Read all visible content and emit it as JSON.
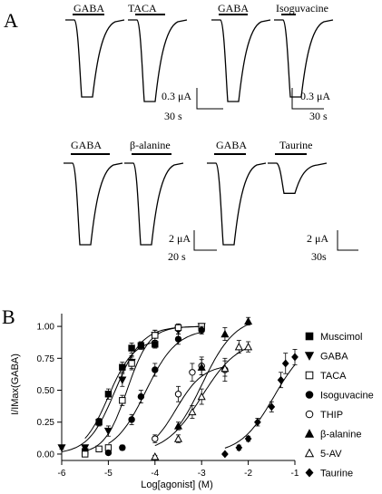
{
  "panelA": {
    "label": "A",
    "pairs": [
      {
        "left": "GABA",
        "right": "TACA",
        "scale_current": "0.3 μA",
        "scale_time": "30 s",
        "left_peak_uA": 0.85,
        "right_peak_uA": 0.9
      },
      {
        "left": "GABA",
        "right": "Isoguvacine",
        "scale_current": "0.3 μA",
        "scale_time": "30 s",
        "left_peak_uA": 0.9,
        "right_peak_uA": 0.85
      },
      {
        "left": "GABA",
        "right": "β-alanine",
        "scale_current": "2 μA",
        "scale_time": "20 s",
        "left_peak_uA": 5.4,
        "right_peak_uA": 5.4
      },
      {
        "left": "GABA",
        "right": "Taurine",
        "scale_current": "2 μA",
        "scale_time": "30s",
        "left_peak_uA": 5.4,
        "right_peak_uA": 2.0
      }
    ]
  },
  "panelB": {
    "label": "B",
    "chart_data": {
      "type": "scatter",
      "xlabel": "Log[agonist] (M)",
      "ylabel": "I/IMax(GABA)",
      "xlim": [
        -6,
        -1
      ],
      "ylim": [
        -0.05,
        1.1
      ],
      "xticks": [
        "-6",
        "-5",
        "-4",
        "-3",
        "-2",
        "-1"
      ],
      "yticks": [
        "0.00",
        "0.25",
        "0.50",
        "0.75",
        "1.00"
      ],
      "legend_position": "right",
      "series": [
        {
          "name": "Muscimol",
          "marker": "square-filled",
          "points": [
            [
              -5.5,
              0.02
            ],
            [
              -5.2,
              0.25
            ],
            [
              -5.0,
              0.47
            ],
            [
              -4.7,
              0.68
            ],
            [
              -4.5,
              0.83
            ],
            [
              -4.3,
              0.85
            ],
            [
              -4.0,
              0.86
            ]
          ],
          "err": [
            0.02,
            0.03,
            0.04,
            0.04,
            0.04,
            0.03,
            0.03
          ],
          "fit": {
            "ec50": -5.0,
            "hill": 1.6,
            "max": 0.9
          }
        },
        {
          "name": "GABA",
          "marker": "triangle-down-filled",
          "points": [
            [
              -6.0,
              0.05
            ],
            [
              -5.5,
              0.05
            ],
            [
              -5.0,
              0.18
            ],
            [
              -4.7,
              0.58
            ],
            [
              -4.5,
              0.72
            ],
            [
              -4.0,
              0.93
            ],
            [
              -3.5,
              0.97
            ],
            [
              -3.0,
              1.0
            ]
          ],
          "err": [
            0.01,
            0.02,
            0.04,
            0.05,
            0.05,
            0.04,
            0.03,
            0.02
          ],
          "fit": {
            "ec50": -4.85,
            "hill": 1.5,
            "max": 1.0
          }
        },
        {
          "name": "TACA",
          "marker": "square-open",
          "points": [
            [
              -5.5,
              0.0
            ],
            [
              -5.2,
              0.04
            ],
            [
              -5.0,
              0.05
            ],
            [
              -4.7,
              0.42
            ],
            [
              -4.5,
              0.71
            ],
            [
              -4.0,
              0.93
            ],
            [
              -3.5,
              0.99
            ],
            [
              -3.0,
              1.0
            ]
          ],
          "err": [
            0.01,
            0.02,
            0.02,
            0.04,
            0.05,
            0.04,
            0.03,
            0.02
          ],
          "fit": {
            "ec50": -4.6,
            "hill": 1.8,
            "max": 1.0
          }
        },
        {
          "name": "Isoguvacine",
          "marker": "circle-filled",
          "points": [
            [
              -5.0,
              0.01
            ],
            [
              -4.7,
              0.05
            ],
            [
              -4.5,
              0.27
            ],
            [
              -4.3,
              0.45
            ],
            [
              -4.0,
              0.66
            ],
            [
              -3.5,
              0.9
            ],
            [
              -3.0,
              0.97
            ]
          ],
          "err": [
            0.01,
            0.02,
            0.04,
            0.05,
            0.05,
            0.04,
            0.03
          ],
          "fit": {
            "ec50": -4.2,
            "hill": 1.3,
            "max": 0.98
          }
        },
        {
          "name": "THIP",
          "marker": "circle-open",
          "points": [
            [
              -4.0,
              0.12
            ],
            [
              -3.5,
              0.47
            ],
            [
              -3.2,
              0.64
            ],
            [
              -3.0,
              0.69
            ],
            [
              -2.5,
              0.66
            ]
          ],
          "err": [
            0.03,
            0.06,
            0.07,
            0.07,
            0.09
          ],
          "fit": {
            "ec50": -3.55,
            "hill": 1.5,
            "max": 0.7
          }
        },
        {
          "name": "β-alanine",
          "marker": "triangle-up-filled",
          "points": [
            [
              -3.5,
              0.22
            ],
            [
              -3.0,
              0.68
            ],
            [
              -2.5,
              0.94
            ],
            [
              -2.0,
              1.04
            ]
          ],
          "err": [
            0.03,
            0.06,
            0.05,
            0.03
          ],
          "fit": {
            "ec50": -3.0,
            "hill": 1.2,
            "max": 1.08
          }
        },
        {
          "name": "5-AV",
          "marker": "triangle-up-open",
          "points": [
            [
              -4.0,
              -0.02
            ],
            [
              -3.5,
              0.12
            ],
            [
              -3.2,
              0.33
            ],
            [
              -3.0,
              0.45
            ],
            [
              -2.5,
              0.67
            ],
            [
              -2.2,
              0.84
            ],
            [
              -2.0,
              0.84
            ]
          ],
          "err": [
            0.01,
            0.03,
            0.05,
            0.06,
            0.06,
            0.05,
            0.04
          ],
          "fit": {
            "ec50": -3.0,
            "hill": 1.1,
            "max": 0.9
          }
        },
        {
          "name": "Taurine",
          "marker": "diamond-filled",
          "points": [
            [
              -2.5,
              0.0
            ],
            [
              -2.2,
              0.05
            ],
            [
              -2.0,
              0.12
            ],
            [
              -1.8,
              0.25
            ],
            [
              -1.5,
              0.37
            ],
            [
              -1.3,
              0.58
            ],
            [
              -1.2,
              0.71
            ],
            [
              -1.0,
              0.76
            ]
          ],
          "err": [
            0.01,
            0.02,
            0.02,
            0.03,
            0.04,
            0.06,
            0.08,
            0.06
          ],
          "fit": {
            "ec50": -1.45,
            "hill": 1.2,
            "max": 0.9
          }
        }
      ]
    }
  }
}
